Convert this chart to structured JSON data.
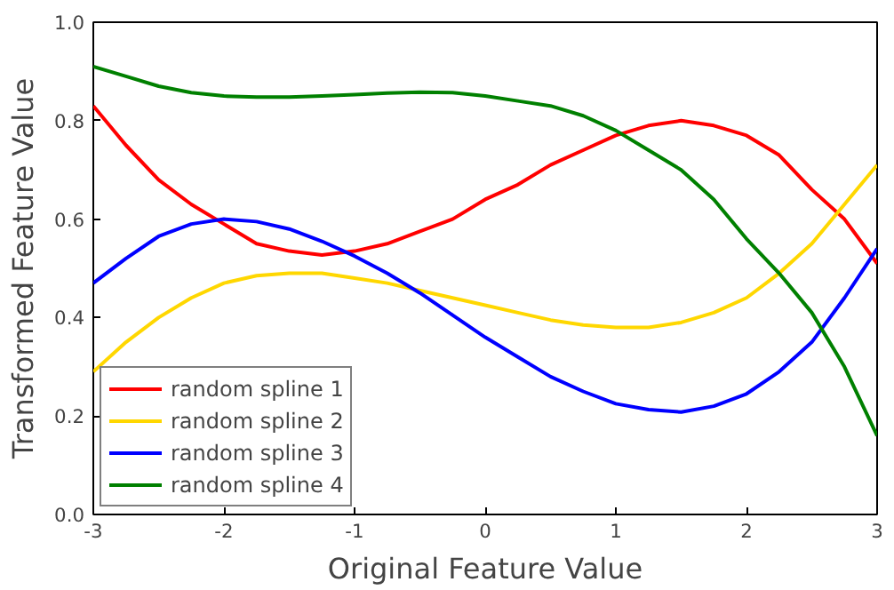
{
  "chart_data": {
    "type": "line",
    "xlabel": "Original Feature Value",
    "ylabel": "Transformed Feature Value",
    "x": [
      -3,
      -2.75,
      -2.5,
      -2.25,
      -2,
      -1.75,
      -1.5,
      -1.25,
      -1,
      -0.75,
      -0.5,
      -0.25,
      0,
      0.25,
      0.5,
      0.75,
      1,
      1.25,
      1.5,
      1.75,
      2,
      2.25,
      2.5,
      2.75,
      3
    ],
    "xlim": [
      -3,
      3
    ],
    "ylim": [
      0,
      1
    ],
    "xticks": [
      -3,
      -2,
      -1,
      0,
      1,
      2,
      3
    ],
    "yticks": [
      {
        "value": 0,
        "label": "0.0"
      },
      {
        "value": 0.2,
        "label": "0.2"
      },
      {
        "value": 0.4,
        "label": "0.4"
      },
      {
        "value": 0.6,
        "label": "0.6"
      },
      {
        "value": 0.8,
        "label": "0.8"
      },
      {
        "value": 1,
        "label": "1.0"
      }
    ],
    "grid": false,
    "legend": "bottom left",
    "marker": "none",
    "line_style": "solid",
    "series": [
      {
        "name": "random spline 1",
        "color": "#ff0000",
        "values": [
          0.83,
          0.75,
          0.68,
          0.63,
          0.59,
          0.55,
          0.535,
          0.527,
          0.535,
          0.55,
          0.575,
          0.6,
          0.64,
          0.67,
          0.71,
          0.74,
          0.77,
          0.79,
          0.8,
          0.79,
          0.77,
          0.73,
          0.66,
          0.6,
          0.51
        ]
      },
      {
        "name": "random spline 2",
        "color": "#ffd700",
        "values": [
          0.29,
          0.35,
          0.4,
          0.44,
          0.47,
          0.485,
          0.49,
          0.49,
          0.48,
          0.47,
          0.455,
          0.44,
          0.425,
          0.41,
          0.395,
          0.385,
          0.38,
          0.38,
          0.39,
          0.41,
          0.44,
          0.49,
          0.55,
          0.63,
          0.71
        ]
      },
      {
        "name": "random spline 3",
        "color": "#0000ff",
        "values": [
          0.47,
          0.52,
          0.565,
          0.59,
          0.6,
          0.595,
          0.58,
          0.555,
          0.525,
          0.49,
          0.45,
          0.405,
          0.36,
          0.32,
          0.28,
          0.25,
          0.225,
          0.213,
          0.208,
          0.22,
          0.245,
          0.29,
          0.35,
          0.44,
          0.54
        ]
      },
      {
        "name": "random spline 4",
        "color": "#008000",
        "values": [
          0.91,
          0.89,
          0.87,
          0.857,
          0.85,
          0.848,
          0.848,
          0.85,
          0.853,
          0.856,
          0.858,
          0.857,
          0.85,
          0.84,
          0.83,
          0.81,
          0.78,
          0.74,
          0.7,
          0.64,
          0.56,
          0.49,
          0.41,
          0.3,
          0.16
        ]
      }
    ]
  }
}
